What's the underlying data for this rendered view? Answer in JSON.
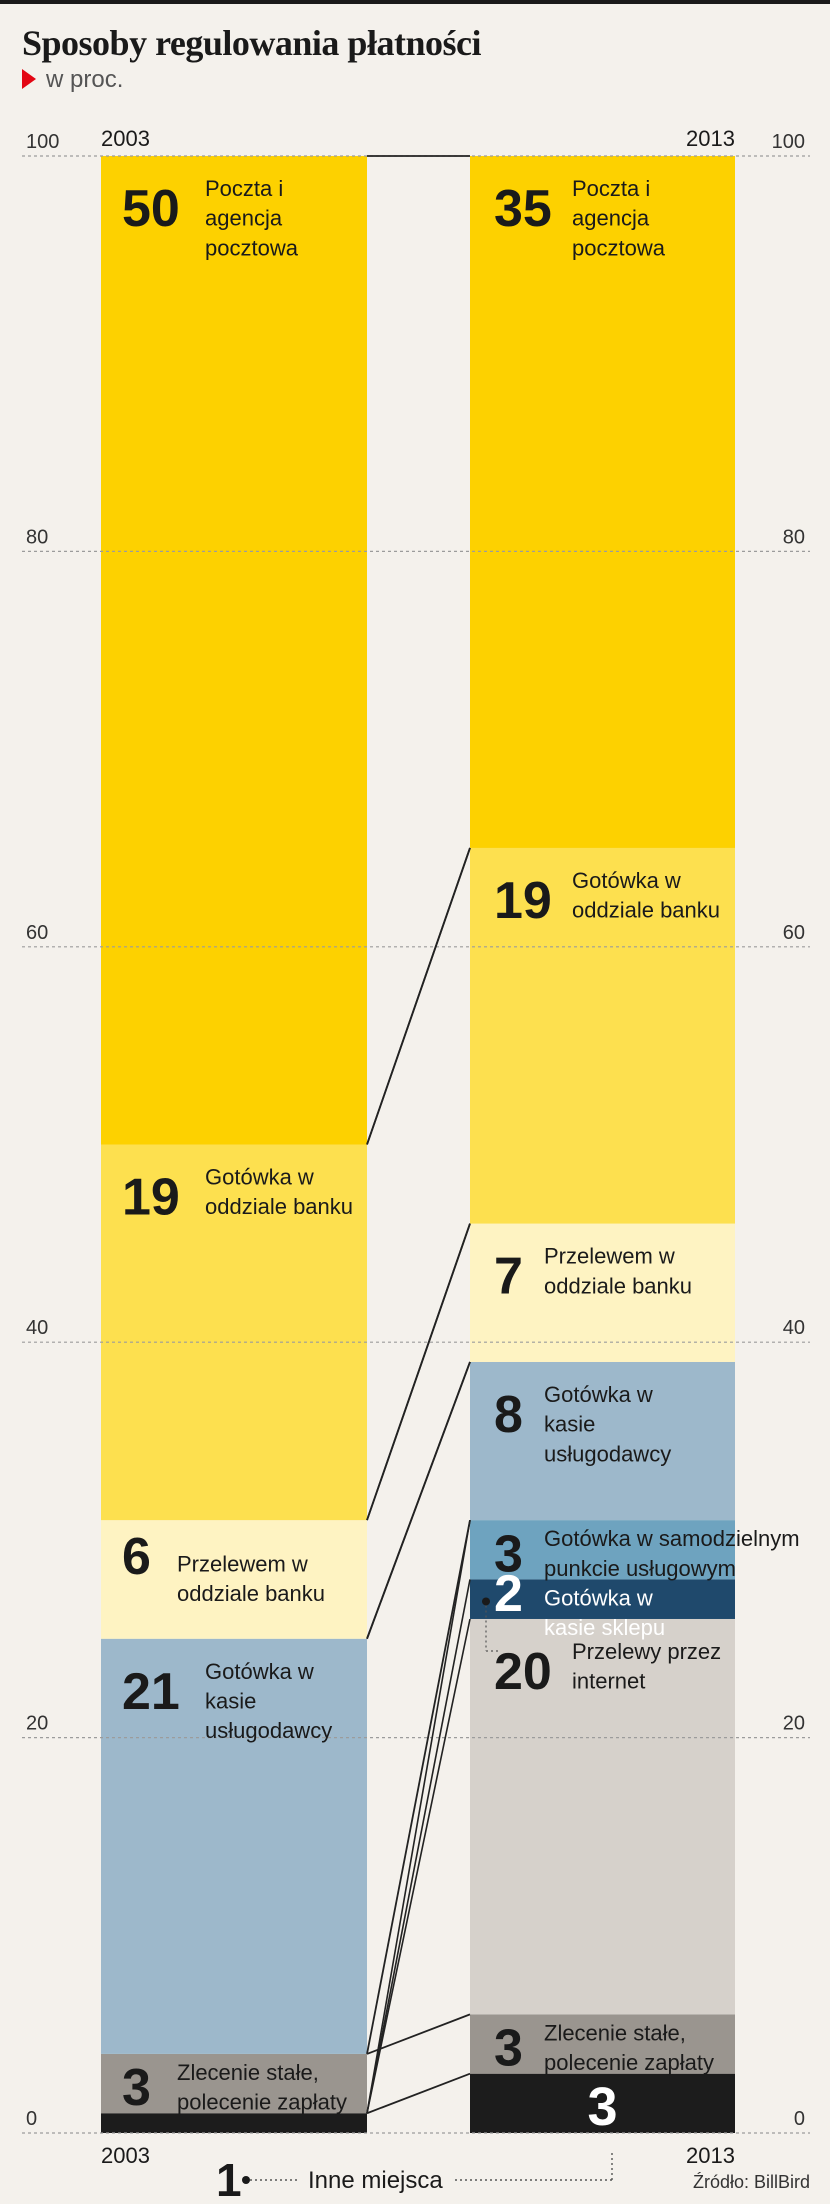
{
  "title": "Sposoby regulowania płatności",
  "subtitle": "w proc.",
  "source": "Źródło: BillBird",
  "colors": {
    "background": "#f4f1ec",
    "poczta": "#fdd100",
    "gotowka_bank": "#fde04f",
    "przelew_bank": "#fef3c2",
    "gotowka_uslugodawca": "#9db8cb",
    "gotowka_samodzielny": "#6ea3bf",
    "dark_blue": "#1f496c",
    "grey_light": "#d6d1cb",
    "grey_dark": "#9a958f",
    "black": "#1c1c1c"
  },
  "chart_data": {
    "type": "bar",
    "stacked": true,
    "ylim": [
      0,
      100
    ],
    "yticks": [
      "0",
      "20",
      "40",
      "60",
      "80",
      "100"
    ],
    "grid": true,
    "bars": [
      {
        "year": "2003",
        "segments": [
          {
            "value": 1,
            "label": "",
            "value_label": "",
            "color": "#1c1c1c"
          },
          {
            "value": 3,
            "label": "Zlecenie stałe, polecenie zapłaty",
            "value_label": "3",
            "color": "#9a958f"
          },
          {
            "value": 21,
            "label": "Gotówka w kasie usługodawcy",
            "value_label": "21",
            "color": "#9db8cb"
          },
          {
            "value": 6,
            "label": "Przelewem w oddziale banku",
            "value_label": "6",
            "color": "#fef3c2"
          },
          {
            "value": 19,
            "label": "Gotówka w oddziale banku",
            "value_label": "19",
            "color": "#fde04f"
          },
          {
            "value": 50,
            "label": "Poczta i agencja pocztowa",
            "value_label": "50",
            "color": "#fdd100"
          }
        ]
      },
      {
        "year": "2013",
        "segments": [
          {
            "value": 3,
            "label": "",
            "value_label": "3",
            "color": "#1c1c1c"
          },
          {
            "value": 3,
            "label": "Zlecenie stałe, polecenie zapłaty",
            "value_label": "3",
            "color": "#9a958f"
          },
          {
            "value": 20,
            "label": "Przelewy przez internet",
            "value_label": "20",
            "color": "#d6d1cb"
          },
          {
            "value": 2,
            "label": "Gotówka w kasie sklepu",
            "value_label": "2",
            "color": "#1f496c"
          },
          {
            "value": 3,
            "label": "Gotówka w samodzielnym punkcie usługowym",
            "value_label": "3",
            "color": "#6ea3bf"
          },
          {
            "value": 8,
            "label": "Gotówka w kasie usługodawcy",
            "value_label": "8",
            "color": "#9db8cb"
          },
          {
            "value": 7,
            "label": "Przelewem w oddziale banku",
            "value_label": "7",
            "color": "#fef3c2"
          },
          {
            "value": 19,
            "label": "Gotówka w oddziale banku",
            "value_label": "19",
            "color": "#fde04f"
          },
          {
            "value": 35,
            "label": "Poczta i agencja pocztowa",
            "value_label": "35",
            "color": "#fdd100"
          }
        ]
      }
    ],
    "annotations": [
      {
        "value_label": "1",
        "label": "Inne miejsca"
      }
    ]
  }
}
